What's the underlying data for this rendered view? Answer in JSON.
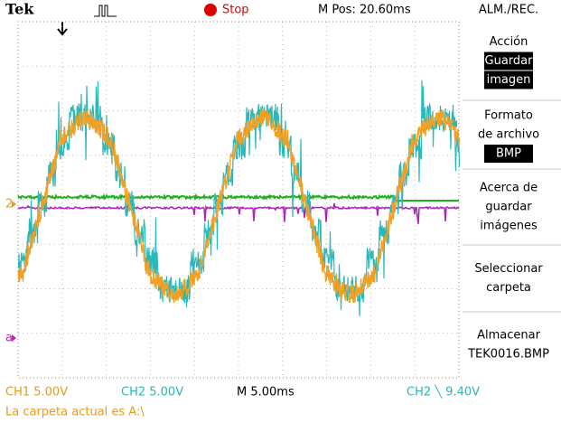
{
  "header": {
    "brand": "Tek",
    "status": "Stop",
    "position": "M Pos: 20.60ms",
    "menu_title": "ALM./REC."
  },
  "menu": {
    "items": [
      {
        "label": [
          "Acción"
        ],
        "value": [
          "Guardar",
          "imagen"
        ]
      },
      {
        "label": [
          "Formato",
          "de archivo"
        ],
        "value": [
          "BMP"
        ]
      },
      {
        "label": [
          "Acerca de",
          "guardar",
          "imágenes"
        ]
      },
      {
        "label": [
          "Seleccionar",
          "carpeta"
        ]
      },
      {
        "label": [
          "Almacenar",
          "TEK0016.BMP"
        ]
      }
    ]
  },
  "markers": {
    "ch2": "2",
    "math": "a"
  },
  "footer": {
    "ch1": "CH1  5.00V",
    "ch2": "CH2  5.00V",
    "timebase": "M 5.00ms",
    "trigger": "CH2 ╲ 9.40V",
    "message": "La carpeta actual es A:\\"
  }
}
